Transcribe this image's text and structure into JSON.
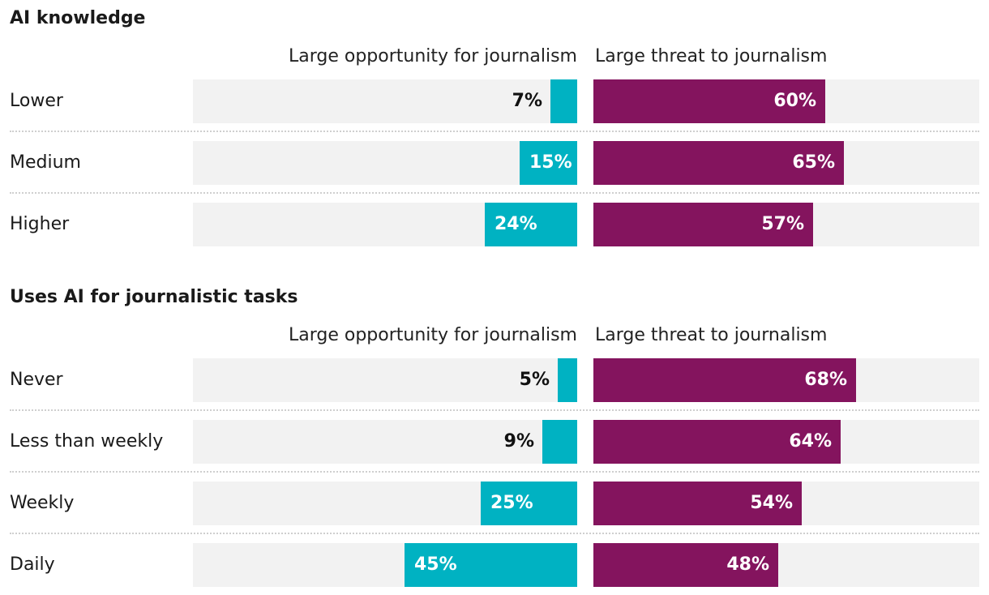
{
  "colors": {
    "opportunity": "#00b2c2",
    "threat": "#84145e",
    "track": "#f2f2f2"
  },
  "chart_data": {
    "type": "bar",
    "orientation": "horizontal-diverging",
    "axis_max": 100,
    "series_names": [
      "Large opportunity for journalism",
      "Large threat to journalism"
    ],
    "groups": [
      {
        "title": "AI knowledge",
        "categories": [
          "Lower",
          "Medium",
          "Higher"
        ],
        "opportunity": [
          7,
          15,
          24
        ],
        "threat": [
          60,
          65,
          57
        ],
        "opportunity_labels": [
          "7%",
          "15%",
          "24%"
        ],
        "threat_labels": [
          "60%",
          "65%",
          "57%"
        ]
      },
      {
        "title": "Uses AI for journalistic tasks",
        "categories": [
          "Never",
          "Less than weekly",
          "Weekly",
          "Daily"
        ],
        "opportunity": [
          5,
          9,
          25,
          45
        ],
        "threat": [
          68,
          64,
          54,
          48
        ],
        "opportunity_labels": [
          "5%",
          "9%",
          "25%",
          "45%"
        ],
        "threat_labels": [
          "68%",
          "64%",
          "54%",
          "48%"
        ]
      }
    ]
  }
}
